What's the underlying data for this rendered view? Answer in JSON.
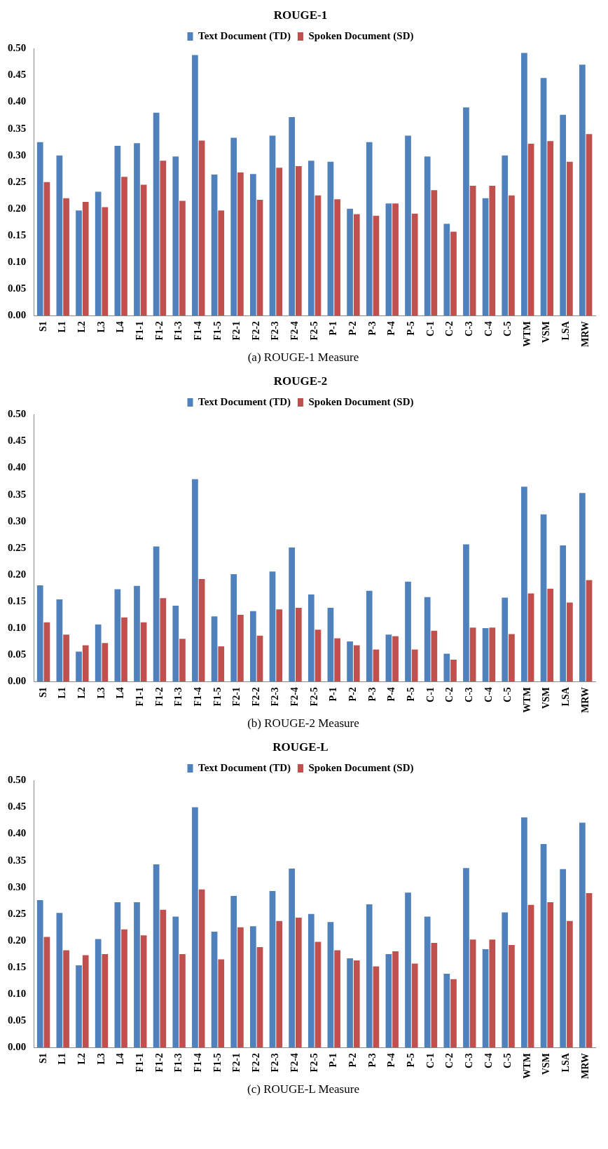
{
  "chart_data": [
    {
      "type": "bar",
      "title": "ROUGE-1",
      "categories": [
        "S1",
        "L1",
        "L2",
        "L3",
        "L4",
        "F1-1",
        "F1-2",
        "F1-3",
        "F1-4",
        "F1-5",
        "F2-1",
        "F2-2",
        "F2-3",
        "F2-4",
        "F2-5",
        "P-1",
        "P-2",
        "P-3",
        "P-4",
        "P-5",
        "C-1",
        "C-2",
        "C-3",
        "C-4",
        "C-5",
        "WTM",
        "VSM",
        "LSA",
        "MRW"
      ],
      "series": [
        {
          "name": "Text Document (TD)",
          "color": "#4f81bd",
          "values": [
            0.325,
            0.3,
            0.197,
            0.232,
            0.318,
            0.323,
            0.38,
            0.298,
            0.488,
            0.264,
            0.333,
            0.265,
            0.337,
            0.372,
            0.29,
            0.288,
            0.2,
            0.325,
            0.21,
            0.337,
            0.298,
            0.172,
            0.39,
            0.22,
            0.3,
            0.492,
            0.445,
            0.376,
            0.47
          ]
        },
        {
          "name": "Spoken Document (SD)",
          "color": "#c0504d",
          "values": [
            0.25,
            0.22,
            0.213,
            0.203,
            0.26,
            0.245,
            0.29,
            0.215,
            0.328,
            0.197,
            0.268,
            0.217,
            0.277,
            0.28,
            0.225,
            0.218,
            0.19,
            0.187,
            0.21,
            0.191,
            0.235,
            0.157,
            0.243,
            0.243,
            0.225,
            0.322,
            0.327,
            0.288,
            0.34
          ]
        }
      ],
      "ylim": [
        0,
        0.5
      ],
      "yticks": [
        {
          "value": 0,
          "label": "0.00"
        },
        {
          "value": 0.05,
          "label": "0.05"
        },
        {
          "value": 0.1,
          "label": "0.10"
        },
        {
          "value": 0.15,
          "label": "0.15"
        },
        {
          "value": 0.2,
          "label": "0.20"
        },
        {
          "value": 0.25,
          "label": "0.25"
        },
        {
          "value": 0.3,
          "label": "0.30"
        },
        {
          "value": 0.35,
          "label": "0.35"
        },
        {
          "value": 0.4,
          "label": "0.40"
        },
        {
          "value": 0.45,
          "label": "0.45"
        },
        {
          "value": 0.5,
          "label": "0.50"
        }
      ],
      "legend": "top",
      "annotations": [
        "(a) ROUGE-1 Measure"
      ]
    },
    {
      "type": "bar",
      "title": "ROUGE-2",
      "categories": [
        "S1",
        "L1",
        "L2",
        "L3",
        "L4",
        "F1-1",
        "F1-2",
        "F1-3",
        "F1-4",
        "F1-5",
        "F2-1",
        "F2-2",
        "F2-3",
        "F2-4",
        "F2-5",
        "P-1",
        "P-2",
        "P-3",
        "P-4",
        "P-5",
        "C-1",
        "C-2",
        "C-3",
        "C-4",
        "C-5",
        "WTM",
        "VSM",
        "LSA",
        "MRW"
      ],
      "series": [
        {
          "name": "Text Document (TD)",
          "color": "#4f81bd",
          "values": [
            0.18,
            0.154,
            0.056,
            0.107,
            0.173,
            0.179,
            0.253,
            0.142,
            0.379,
            0.122,
            0.201,
            0.132,
            0.206,
            0.251,
            0.163,
            0.138,
            0.075,
            0.17,
            0.088,
            0.187,
            0.158,
            0.052,
            0.257,
            0.1,
            0.157,
            0.365,
            0.313,
            0.255,
            0.353
          ]
        },
        {
          "name": "Spoken Document (SD)",
          "color": "#c0504d",
          "values": [
            0.111,
            0.088,
            0.068,
            0.072,
            0.12,
            0.111,
            0.156,
            0.08,
            0.192,
            0.066,
            0.125,
            0.086,
            0.135,
            0.138,
            0.097,
            0.081,
            0.068,
            0.06,
            0.085,
            0.06,
            0.095,
            0.041,
            0.101,
            0.101,
            0.089,
            0.165,
            0.174,
            0.148,
            0.19
          ]
        }
      ],
      "ylim": [
        0,
        0.5
      ],
      "yticks": [
        {
          "value": 0,
          "label": "0.00"
        },
        {
          "value": 0.05,
          "label": "0.05"
        },
        {
          "value": 0.1,
          "label": "0.10"
        },
        {
          "value": 0.15,
          "label": "0.15"
        },
        {
          "value": 0.2,
          "label": "0.20"
        },
        {
          "value": 0.25,
          "label": "0.25"
        },
        {
          "value": 0.3,
          "label": "0.30"
        },
        {
          "value": 0.35,
          "label": "0.35"
        },
        {
          "value": 0.4,
          "label": "0.40"
        },
        {
          "value": 0.45,
          "label": "0.45"
        },
        {
          "value": 0.5,
          "label": "0.50"
        }
      ],
      "legend": "top",
      "annotations": [
        "(b) ROUGE-2 Measure"
      ]
    },
    {
      "type": "bar",
      "title": "ROUGE-L",
      "categories": [
        "S1",
        "L1",
        "L2",
        "L3",
        "L4",
        "F1-1",
        "F1-2",
        "F1-3",
        "F1-4",
        "F1-5",
        "F2-1",
        "F2-2",
        "F2-3",
        "F2-4",
        "F2-5",
        "P-1",
        "P-2",
        "P-3",
        "P-4",
        "P-5",
        "C-1",
        "C-2",
        "C-3",
        "C-4",
        "C-5",
        "WTM",
        "VSM",
        "LSA",
        "MRW"
      ],
      "series": [
        {
          "name": "Text Document (TD)",
          "color": "#4f81bd",
          "values": [
            0.276,
            0.252,
            0.154,
            0.203,
            0.272,
            0.272,
            0.343,
            0.245,
            0.45,
            0.217,
            0.284,
            0.227,
            0.293,
            0.335,
            0.25,
            0.235,
            0.167,
            0.268,
            0.175,
            0.29,
            0.245,
            0.138,
            0.336,
            0.184,
            0.253,
            0.431,
            0.381,
            0.334,
            0.421
          ]
        },
        {
          "name": "Spoken Document (SD)",
          "color": "#c0504d",
          "values": [
            0.207,
            0.182,
            0.173,
            0.175,
            0.221,
            0.21,
            0.258,
            0.175,
            0.296,
            0.165,
            0.225,
            0.188,
            0.237,
            0.243,
            0.198,
            0.182,
            0.163,
            0.152,
            0.18,
            0.157,
            0.196,
            0.128,
            0.202,
            0.202,
            0.192,
            0.267,
            0.272,
            0.237,
            0.289
          ]
        }
      ],
      "ylim": [
        0,
        0.5
      ],
      "yticks": [
        {
          "value": 0,
          "label": "0.00"
        },
        {
          "value": 0.05,
          "label": "0.05"
        },
        {
          "value": 0.1,
          "label": "0.10"
        },
        {
          "value": 0.15,
          "label": "0.15"
        },
        {
          "value": 0.2,
          "label": "0.20"
        },
        {
          "value": 0.25,
          "label": "0.25"
        },
        {
          "value": 0.3,
          "label": "0.30"
        },
        {
          "value": 0.35,
          "label": "0.35"
        },
        {
          "value": 0.4,
          "label": "0.40"
        },
        {
          "value": 0.45,
          "label": "0.45"
        },
        {
          "value": 0.5,
          "label": "0.50"
        }
      ],
      "legend": "top",
      "annotations": [
        "(c) ROUGE-L Measure"
      ]
    }
  ]
}
